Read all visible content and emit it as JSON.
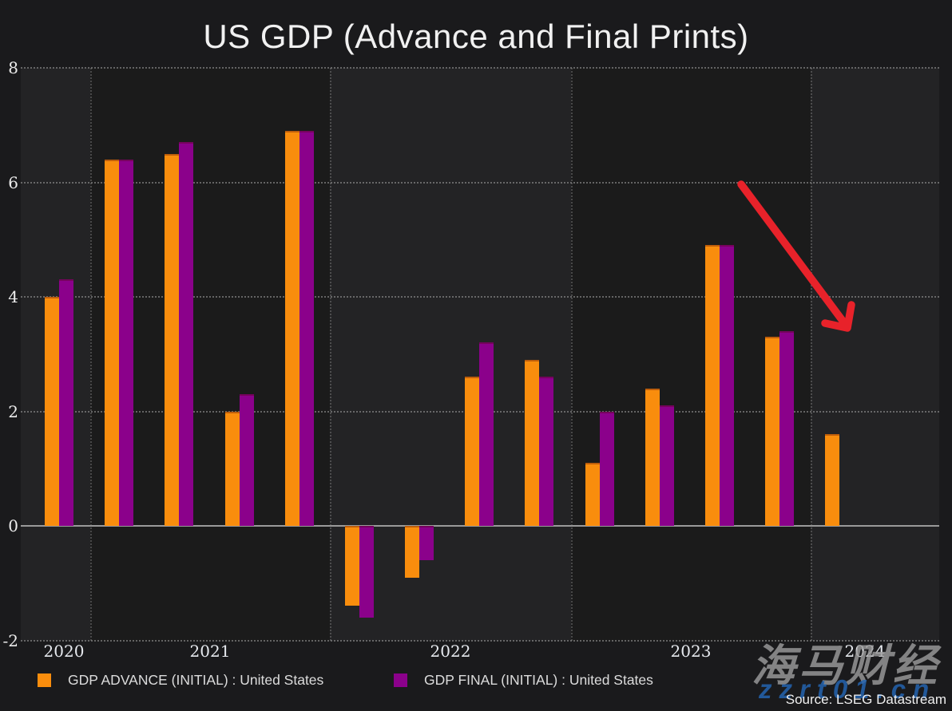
{
  "title": "US GDP (Advance and Final Prints)",
  "source_note": "Source: LSEG Datastream",
  "watermark": {
    "brand": "海马财经",
    "site": "zzrt01.cn"
  },
  "legend": [
    {
      "label": "GDP ADVANCE (INITIAL) : United States",
      "color": "#F98D0D"
    },
    {
      "label": "GDP FINAL (INITIAL) : United States",
      "color": "#8B018B"
    }
  ],
  "colors": {
    "advance": "#F98D0D",
    "final": "#8B018B",
    "arrow": "#E8222A",
    "background": "#1A1A1C",
    "band_light": "#232325",
    "band_dark": "#1B1B1B",
    "grid": "#8F8F8F",
    "zero_line": "#9A9A9A",
    "text": "#E8E8E8"
  },
  "y_axis": {
    "ticks": [
      "8",
      "6",
      "4",
      "2",
      "0",
      "-2"
    ],
    "range": [
      -2,
      8
    ]
  },
  "x_axis": {
    "years": [
      "2020",
      "2021",
      "2022",
      "2023",
      "2024"
    ]
  },
  "chart_data": {
    "type": "bar",
    "title": "US GDP (Advance and Final Prints)",
    "xlabel": "",
    "ylabel": "",
    "ylim": [
      -2,
      8
    ],
    "grid": "dotted",
    "legend_position": "bottom",
    "categories": [
      "2020 Q4",
      "2021 Q1",
      "2021 Q2",
      "2021 Q3",
      "2021 Q4",
      "2022 Q1",
      "2022 Q2",
      "2022 Q3",
      "2022 Q4",
      "2023 Q1",
      "2023 Q2",
      "2023 Q3",
      "2023 Q4",
      "2024 Q1"
    ],
    "series": [
      {
        "name": "GDP ADVANCE (INITIAL) : United States",
        "color": "#F98D0D",
        "values": [
          4.0,
          6.4,
          6.5,
          2.0,
          6.9,
          -1.4,
          -0.9,
          2.6,
          2.9,
          1.1,
          2.4,
          4.9,
          3.3,
          1.6
        ]
      },
      {
        "name": "GDP FINAL (INITIAL) : United States",
        "color": "#8B018B",
        "values": [
          4.3,
          6.4,
          6.7,
          2.3,
          6.9,
          -1.6,
          -0.6,
          3.2,
          2.6,
          2.0,
          2.1,
          4.9,
          3.4,
          null
        ]
      }
    ],
    "annotations": [
      {
        "type": "arrow",
        "color": "#E8222A",
        "note": "red arrow pointing down toward 2024 print"
      }
    ]
  }
}
